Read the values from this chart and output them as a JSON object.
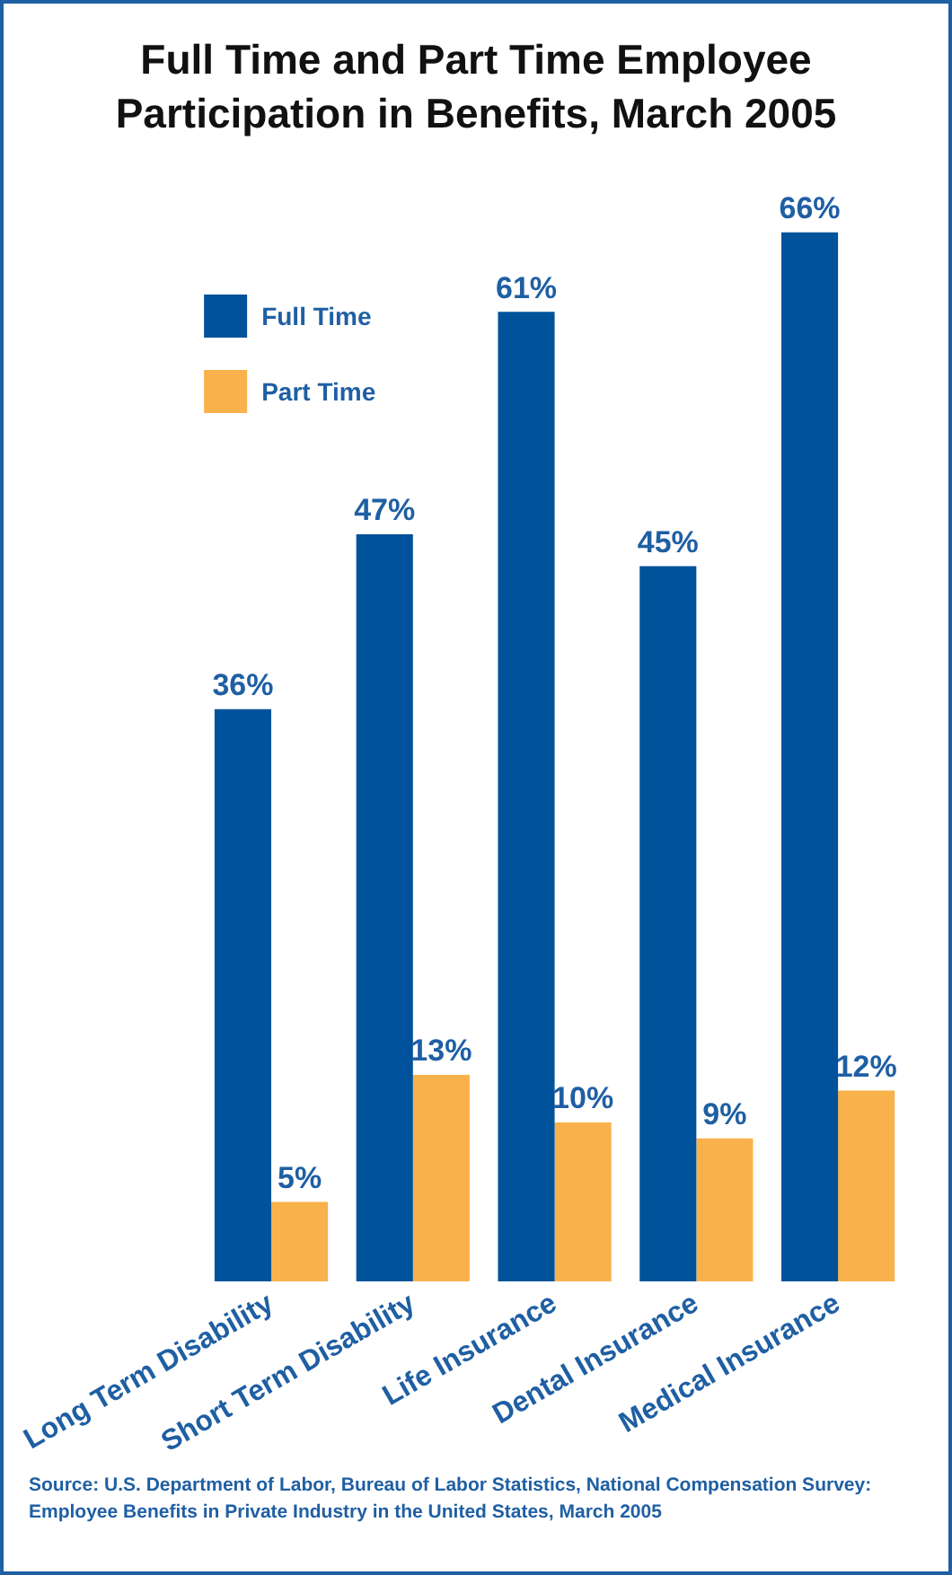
{
  "chart_data": {
    "type": "bar",
    "title": "Full Time and Part Time Employee Participation in Benefits, March 2005",
    "categories": [
      "Long Term Disability",
      "Short Term Disability",
      "Life Insurance",
      "Dental Insurance",
      "Medical Insurance"
    ],
    "series": [
      {
        "name": "Full Time",
        "color": "#00529b",
        "values": [
          36,
          47,
          61,
          45,
          66
        ],
        "value_labels": [
          "36%",
          "47%",
          "61%",
          "45%",
          "66%"
        ]
      },
      {
        "name": "Part Time",
        "color": "#f9b14b",
        "values": [
          5,
          13,
          10,
          9,
          12
        ],
        "value_labels": [
          "5%",
          "13%",
          "10%",
          "9%",
          "12%"
        ]
      }
    ],
    "legend": "top left",
    "grid": false,
    "tick_labels": "x",
    "annotations": [
      "Source: U.S. Department of Labor, Bureau of Labor Statistics, National Compensation Survey: Employee Benefits in Private Industry in the United States, March 2005"
    ]
  }
}
